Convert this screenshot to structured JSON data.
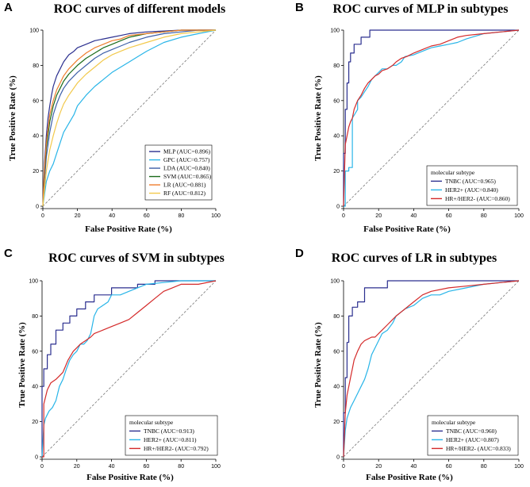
{
  "colors": {
    "MLP": "#2b2f8f",
    "GPC": "#29b5e8",
    "LDA": "#3d5fa8",
    "SVM": "#1a6b1a",
    "LR": "#ef7d2d",
    "RF": "#f2c94c",
    "TNBC": "#2b2f8f",
    "HER2+": "#29b5e8",
    "HR+/HER2-": "#d42a2a"
  },
  "chart_data": [
    {
      "panel": "A",
      "type": "line",
      "title": "ROC curves of different models",
      "xlabel": "False Positive Rate (%)",
      "ylabel": "True Positive Rate (%)",
      "xlim": [
        0,
        100
      ],
      "ylim": [
        0,
        100
      ],
      "xticks": [
        "0",
        "20",
        "40",
        "60",
        "80",
        "100"
      ],
      "yticks": [
        "0",
        "20",
        "40",
        "60",
        "80",
        "100"
      ],
      "legend_title": "",
      "legend_position": "bottom-right",
      "diagonal": true,
      "series": [
        {
          "name": "MLP",
          "label": "MLP (AUC=0.896)",
          "auc": 0.896,
          "x": [
            0,
            1,
            2,
            3,
            4,
            5,
            6,
            8,
            10,
            12,
            15,
            18,
            20,
            25,
            30,
            35,
            40,
            45,
            50,
            60,
            70,
            80,
            90,
            100
          ],
          "y": [
            0,
            25,
            40,
            50,
            57,
            63,
            68,
            74,
            78,
            82,
            86,
            88,
            90,
            92,
            94,
            95,
            96,
            97,
            98,
            99,
            99.5,
            100,
            100,
            100
          ]
        },
        {
          "name": "GPC",
          "label": "GPC (AUC=0.757)",
          "auc": 0.757,
          "x": [
            0,
            2,
            4,
            6,
            8,
            10,
            12,
            15,
            18,
            20,
            25,
            30,
            35,
            40,
            45,
            50,
            55,
            60,
            70,
            80,
            90,
            100
          ],
          "y": [
            0,
            14,
            20,
            24,
            30,
            36,
            42,
            47,
            52,
            57,
            63,
            68,
            72,
            76,
            79,
            82,
            85,
            88,
            93,
            96,
            98,
            100
          ]
        },
        {
          "name": "LDA",
          "label": "LDA (AUC=0.840)",
          "auc": 0.84,
          "x": [
            0,
            1,
            2,
            4,
            6,
            8,
            10,
            12,
            15,
            20,
            25,
            30,
            35,
            40,
            45,
            50,
            60,
            70,
            80,
            90,
            100
          ],
          "y": [
            0,
            15,
            28,
            42,
            52,
            58,
            63,
            67,
            71,
            76,
            80,
            84,
            87,
            89,
            91,
            93,
            96,
            98,
            99,
            100,
            100
          ]
        },
        {
          "name": "SVM",
          "label": "SVM (AUC=0.865)",
          "auc": 0.865,
          "x": [
            0,
            1,
            2,
            4,
            6,
            8,
            10,
            12,
            15,
            20,
            25,
            30,
            35,
            40,
            45,
            50,
            60,
            70,
            80,
            90,
            100
          ],
          "y": [
            0,
            20,
            33,
            48,
            57,
            63,
            67,
            71,
            75,
            80,
            84,
            87,
            90,
            92,
            94,
            96,
            98,
            99,
            100,
            100,
            100
          ]
        },
        {
          "name": "LR",
          "label": "LR (AUC=0.881)",
          "auc": 0.881,
          "x": [
            0,
            1,
            2,
            4,
            6,
            8,
            10,
            12,
            15,
            20,
            25,
            30,
            35,
            40,
            45,
            50,
            60,
            70,
            80,
            90,
            100
          ],
          "y": [
            0,
            22,
            36,
            52,
            60,
            66,
            70,
            74,
            78,
            83,
            87,
            90,
            92,
            94,
            95,
            97,
            98,
            99,
            100,
            100,
            100
          ]
        },
        {
          "name": "RF",
          "label": "RF (AUC=0.812)",
          "auc": 0.812,
          "x": [
            0,
            1,
            2,
            4,
            6,
            8,
            10,
            12,
            15,
            20,
            25,
            30,
            35,
            40,
            45,
            50,
            60,
            70,
            80,
            90,
            100
          ],
          "y": [
            0,
            10,
            20,
            32,
            40,
            47,
            53,
            58,
            63,
            70,
            75,
            79,
            83,
            86,
            88,
            90,
            93,
            96,
            98,
            99,
            100
          ]
        }
      ]
    },
    {
      "panel": "B",
      "type": "line",
      "title": "ROC curves of MLP in subtypes",
      "xlabel": "False Positive Rate (%)",
      "ylabel": "True Positive Rate (%)",
      "xlim": [
        0,
        100
      ],
      "ylim": [
        0,
        100
      ],
      "xticks": [
        "0",
        "20",
        "40",
        "60",
        "80",
        "100"
      ],
      "yticks": [
        "0",
        "20",
        "40",
        "60",
        "80",
        "100"
      ],
      "legend_title": "molecular subtype",
      "legend_position": "bottom-right",
      "diagonal": true,
      "series": [
        {
          "name": "TNBC",
          "label": "TNBC (AUC=0.965)",
          "auc": 0.965,
          "x": [
            0,
            0,
            1,
            1,
            2,
            2,
            3,
            3,
            4,
            4,
            6,
            6,
            10,
            10,
            15,
            15,
            100
          ],
          "y": [
            0,
            30,
            30,
            55,
            55,
            70,
            70,
            82,
            82,
            87,
            87,
            92,
            92,
            96,
            96,
            100,
            100
          ]
        },
        {
          "name": "HER2+",
          "label": "HER2+ (AUC=0.840)",
          "auc": 0.84,
          "x": [
            0,
            1,
            1,
            3,
            3,
            5,
            5,
            8,
            8,
            10,
            12,
            14,
            16,
            18,
            20,
            22,
            25,
            28,
            30,
            33,
            35,
            40,
            45,
            50,
            55,
            60,
            65,
            70,
            80,
            90,
            100
          ],
          "y": [
            0,
            0,
            20,
            20,
            22,
            22,
            50,
            55,
            60,
            62,
            65,
            68,
            72,
            74,
            76,
            78,
            78,
            80,
            80,
            82,
            85,
            86,
            88,
            90,
            91,
            92,
            93,
            95,
            98,
            99,
            100
          ]
        },
        {
          "name": "HR+/HER2-",
          "label": "HR+/HER2- (AUC=0.860)",
          "auc": 0.86,
          "x": [
            0,
            1,
            2,
            3,
            4,
            5,
            6,
            8,
            10,
            12,
            14,
            16,
            18,
            20,
            22,
            25,
            28,
            30,
            33,
            36,
            40,
            45,
            50,
            55,
            60,
            65,
            70,
            80,
            90,
            100
          ],
          "y": [
            0,
            35,
            40,
            45,
            48,
            50,
            55,
            60,
            63,
            67,
            70,
            72,
            74,
            75,
            77,
            78,
            80,
            82,
            84,
            85,
            87,
            89,
            91,
            92,
            94,
            96,
            97,
            98,
            99,
            100
          ]
        }
      ]
    },
    {
      "panel": "C",
      "type": "line",
      "title": "ROC curves of SVM in subtypes",
      "xlabel": "False Positive Rate (%)",
      "ylabel": "True Positive Rate (%)",
      "xlim": [
        0,
        100
      ],
      "ylim": [
        0,
        100
      ],
      "xticks": [
        "0",
        "20",
        "40",
        "60",
        "80",
        "100"
      ],
      "yticks": [
        "0",
        "20",
        "40",
        "60",
        "80",
        "100"
      ],
      "legend_title": "molecular subtype",
      "legend_position": "bottom-right",
      "diagonal": true,
      "series": [
        {
          "name": "TNBC",
          "label": "TNBC (AUC=0.913)",
          "auc": 0.913,
          "x": [
            0,
            0,
            1,
            1,
            3,
            3,
            5,
            5,
            8,
            8,
            12,
            12,
            16,
            16,
            20,
            20,
            25,
            25,
            30,
            30,
            40,
            40,
            55,
            55,
            65,
            65,
            100
          ],
          "y": [
            0,
            40,
            40,
            50,
            50,
            58,
            58,
            64,
            64,
            72,
            72,
            76,
            76,
            80,
            80,
            84,
            84,
            88,
            88,
            92,
            92,
            96,
            96,
            98,
            98,
            100,
            100
          ]
        },
        {
          "name": "HER2+",
          "label": "HER2+ (AUC=0.811)",
          "auc": 0.811,
          "x": [
            0,
            1,
            2,
            4,
            6,
            8,
            10,
            12,
            14,
            16,
            18,
            20,
            22,
            24,
            26,
            28,
            30,
            32,
            35,
            38,
            40,
            45,
            50,
            55,
            60,
            70,
            80,
            90,
            100
          ],
          "y": [
            0,
            18,
            22,
            26,
            28,
            32,
            40,
            44,
            50,
            55,
            58,
            60,
            64,
            64,
            66,
            70,
            80,
            84,
            86,
            88,
            92,
            92,
            94,
            96,
            98,
            99,
            100,
            100,
            100
          ]
        },
        {
          "name": "HR+/HER2-",
          "label": "HR+/HER2- (AUC=0.792)",
          "auc": 0.792,
          "x": [
            0,
            1,
            1,
            3,
            5,
            8,
            10,
            12,
            15,
            18,
            20,
            22,
            25,
            28,
            30,
            35,
            40,
            45,
            50,
            55,
            60,
            65,
            70,
            75,
            80,
            90,
            100
          ],
          "y": [
            0,
            0,
            30,
            38,
            42,
            44,
            46,
            48,
            55,
            60,
            62,
            64,
            66,
            68,
            70,
            72,
            74,
            76,
            78,
            82,
            86,
            90,
            94,
            96,
            98,
            98,
            100
          ]
        }
      ]
    },
    {
      "panel": "D",
      "type": "line",
      "title": "ROC curves of LR in subtypes",
      "xlabel": "False Positive Rate (%)",
      "ylabel": "True Positive Rate (%)",
      "xlim": [
        0,
        100
      ],
      "ylim": [
        0,
        100
      ],
      "xticks": [
        "0",
        "20",
        "40",
        "60",
        "80",
        "100"
      ],
      "yticks": [
        "0",
        "20",
        "40",
        "60",
        "80",
        "100"
      ],
      "legend_title": "molecular subtype",
      "legend_position": "bottom-right",
      "diagonal": true,
      "series": [
        {
          "name": "TNBC",
          "label": "TNBC (AUC=0.960)",
          "auc": 0.96,
          "x": [
            0,
            0,
            1,
            1,
            2,
            2,
            3,
            3,
            5,
            5,
            8,
            8,
            12,
            12,
            25,
            25,
            100
          ],
          "y": [
            0,
            25,
            25,
            45,
            45,
            65,
            65,
            80,
            80,
            85,
            85,
            88,
            88,
            96,
            96,
            100,
            100
          ]
        },
        {
          "name": "HER2+",
          "label": "HER2+ (AUC=0.807)",
          "auc": 0.807,
          "x": [
            0,
            1,
            2,
            4,
            6,
            8,
            10,
            12,
            14,
            16,
            18,
            20,
            22,
            25,
            28,
            30,
            35,
            40,
            45,
            50,
            55,
            60,
            70,
            80,
            90,
            100
          ],
          "y": [
            0,
            15,
            22,
            28,
            32,
            36,
            40,
            44,
            50,
            58,
            62,
            66,
            70,
            72,
            76,
            80,
            84,
            86,
            90,
            92,
            92,
            94,
            96,
            98,
            99,
            100
          ]
        },
        {
          "name": "HR+/HER2-",
          "label": "HR+/HER2- (AUC=0.833)",
          "auc": 0.833,
          "x": [
            0,
            1,
            2,
            3,
            4,
            5,
            6,
            8,
            10,
            12,
            14,
            16,
            18,
            20,
            22,
            25,
            28,
            30,
            35,
            40,
            45,
            50,
            60,
            70,
            80,
            90,
            100
          ],
          "y": [
            0,
            25,
            35,
            40,
            45,
            50,
            55,
            60,
            64,
            66,
            67,
            68,
            68,
            70,
            72,
            75,
            78,
            80,
            84,
            88,
            92,
            94,
            96,
            97,
            98,
            99,
            100
          ]
        }
      ]
    }
  ],
  "panel_labels": [
    "A",
    "B",
    "C",
    "D"
  ]
}
